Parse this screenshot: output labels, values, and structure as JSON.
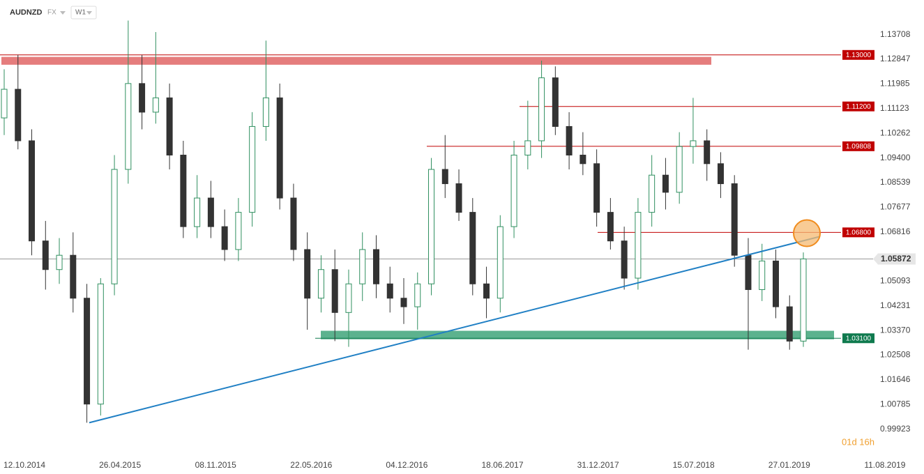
{
  "header": {
    "symbol": "AUDNZD",
    "market": "FX",
    "interval": "W1"
  },
  "countdown": "01d 16h",
  "chart_data": {
    "type": "candlestick",
    "ylim": [
      0.98844,
      1.14919
    ],
    "yticks": [
      1.13708,
      1.12847,
      1.11985,
      1.11123,
      1.10262,
      {
        "value": 1.094,
        "label": "1.09400"
      },
      1.08539,
      1.07677,
      1.06816,
      1.05093,
      1.04231,
      {
        "value": 1.0337,
        "label": "1.03370"
      },
      1.02508,
      1.01646,
      1.00785,
      0.99923
    ],
    "xticks": [
      "12.10.2014",
      "26.04.2015",
      "08.11.2015",
      "22.05.2016",
      "04.12.2016",
      "18.06.2017",
      "31.12.2017",
      "15.07.2018",
      "27.01.2019",
      "11.08.2019"
    ],
    "up_color": "#2f8f5f",
    "down_color": "#333333",
    "open": [
      1.108,
      1.118,
      1.1,
      1.065,
      1.055,
      1.06,
      1.045,
      1.008,
      1.05,
      1.09,
      1.12,
      1.11,
      1.115,
      1.095,
      1.07,
      1.08,
      1.07,
      1.062,
      1.075,
      1.105,
      1.115,
      1.08,
      1.062,
      1.045,
      1.055,
      1.04,
      1.05,
      1.062,
      1.05,
      1.045,
      1.042,
      1.05,
      1.09,
      1.085,
      1.075,
      1.05,
      1.045,
      1.07,
      1.095,
      1.1,
      1.122,
      1.105,
      1.095,
      1.092,
      1.075,
      1.065,
      1.052,
      1.075,
      1.088,
      1.082,
      1.098,
      1.1,
      1.092,
      1.085,
      1.06,
      1.048,
      1.058,
      1.042,
      1.03
    ],
    "high": [
      1.125,
      1.13,
      1.104,
      1.072,
      1.066,
      1.068,
      1.05,
      1.052,
      1.095,
      1.142,
      1.13,
      1.138,
      1.12,
      1.1,
      1.088,
      1.086,
      1.076,
      1.08,
      1.11,
      1.135,
      1.12,
      1.085,
      1.068,
      1.06,
      1.062,
      1.055,
      1.068,
      1.067,
      1.056,
      1.052,
      1.054,
      1.094,
      1.102,
      1.09,
      1.08,
      1.056,
      1.074,
      1.1,
      1.114,
      1.128,
      1.126,
      1.11,
      1.103,
      1.097,
      1.08,
      1.07,
      1.08,
      1.095,
      1.094,
      1.103,
      1.115,
      1.104,
      1.096,
      1.088,
      1.066,
      1.064,
      1.062,
      1.046,
      1.061
    ],
    "low": [
      1.102,
      1.097,
      1.06,
      1.048,
      1.05,
      1.04,
      1.0015,
      1.004,
      1.046,
      1.085,
      1.104,
      1.106,
      1.09,
      1.066,
      1.066,
      1.066,
      1.058,
      1.058,
      1.07,
      1.1,
      1.076,
      1.058,
      1.034,
      1.04,
      1.03,
      1.028,
      1.044,
      1.045,
      1.04,
      1.036,
      1.034,
      1.046,
      1.08,
      1.072,
      1.046,
      1.038,
      1.04,
      1.066,
      1.09,
      1.094,
      1.102,
      1.09,
      1.088,
      1.07,
      1.062,
      1.048,
      1.048,
      1.07,
      1.076,
      1.078,
      1.092,
      1.086,
      1.08,
      1.056,
      1.027,
      1.044,
      1.038,
      1.027,
      1.028
    ],
    "close": [
      1.118,
      1.1,
      1.065,
      1.055,
      1.06,
      1.045,
      1.008,
      1.05,
      1.09,
      1.12,
      1.11,
      1.115,
      1.095,
      1.07,
      1.08,
      1.07,
      1.062,
      1.075,
      1.105,
      1.115,
      1.08,
      1.062,
      1.045,
      1.055,
      1.04,
      1.05,
      1.062,
      1.05,
      1.045,
      1.042,
      1.05,
      1.09,
      1.085,
      1.075,
      1.05,
      1.045,
      1.07,
      1.095,
      1.1,
      1.122,
      1.105,
      1.095,
      1.092,
      1.075,
      1.065,
      1.052,
      1.075,
      1.088,
      1.082,
      1.098,
      1.1,
      1.092,
      1.085,
      1.06,
      1.048,
      1.058,
      1.042,
      1.03,
      1.05872
    ],
    "levels": [
      {
        "value": 1.13,
        "label": "1.13000",
        "color": "#c00000"
      },
      {
        "value": 1.112,
        "label": "1.11200",
        "color": "#c00000"
      },
      {
        "value": 1.09808,
        "label": "1.09808",
        "color": "#c00000"
      },
      {
        "value": 1.068,
        "label": "1.06800",
        "color": "#c00000"
      },
      {
        "value": 1.031,
        "label": "1.03100",
        "color": "#0f7a4e"
      }
    ],
    "zones": [
      {
        "range": [
          1.12657,
          1.12931
        ],
        "color": "#e06666"
      },
      {
        "range": [
          1.03064,
          1.03361
        ],
        "color": "#3fa57a"
      }
    ],
    "trendline": [
      1.0015,
      1.0665
    ],
    "trendline_color": "#1f7fc4",
    "current_price": 1.05872
  }
}
